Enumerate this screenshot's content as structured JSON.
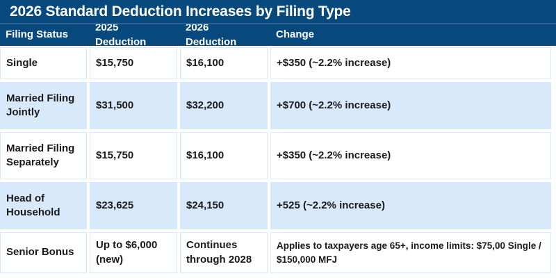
{
  "chart_data": {
    "type": "table",
    "title": "2026 Standard Deduction Increases by Filing Type",
    "columns": [
      "Filing Status",
      "2025 Deduction",
      "2026 Deduction",
      "Change"
    ],
    "rows": [
      [
        "Single",
        "$15,750",
        "$16,100",
        "+$350 (~2.2% increase)"
      ],
      [
        "Married Filing Jointly",
        "$31,500",
        "$32,200",
        "+$700 (~2.2% increase)"
      ],
      [
        "Married Filing Separately",
        "$15,750",
        "$16,100",
        "+$350 (~2.2% increase)"
      ],
      [
        "Head of Household",
        "$23,625",
        "$24,150",
        "+525 (~2.2% increase)"
      ],
      [
        "Senior Bonus",
        "Up to $6,000 (new)",
        "Continues through 2028",
        "Applies to taxpayers age 65+, income limits: $75,00 Single / $150,000 MFJ"
      ]
    ],
    "layout": {
      "legend": "none",
      "grid": "cell-gutters",
      "stripe_pattern": [
        "white",
        "lightblue",
        "white",
        "lightblue",
        "white"
      ]
    }
  },
  "colors": {
    "header_bg": "#07497D",
    "header_divider": "#2F6490",
    "header_text": "#FFFFFF",
    "row_bg": "#FFFFFF",
    "row_alt_bg": "#D9E9FC",
    "cell_border": "#D9E9FA",
    "text": "#1A1A1A"
  }
}
